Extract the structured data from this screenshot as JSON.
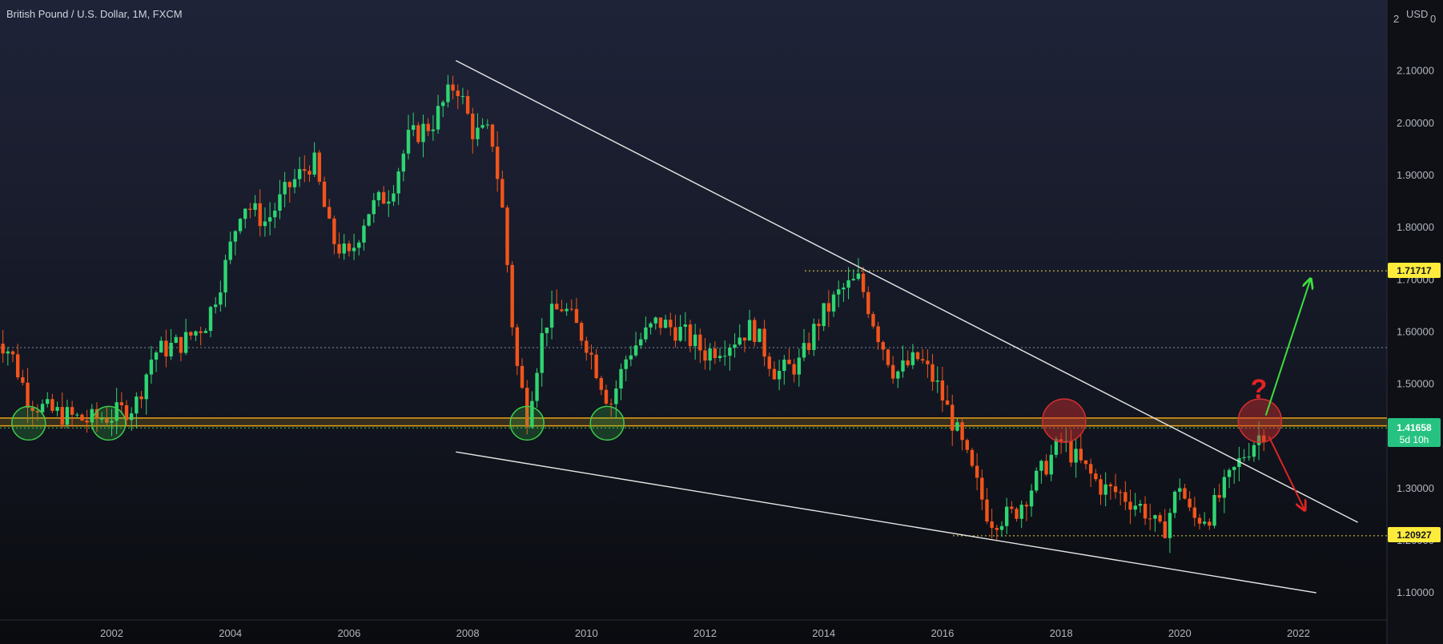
{
  "header": {
    "title": "British Pound / U.S. Dollar, 1M, FXCM"
  },
  "axis": {
    "currency": "USD",
    "currency_suffix": "0",
    "y_ticks": [
      "2.10000",
      "2.00000",
      "1.90000",
      "1.80000",
      "1.70000",
      "1.60000",
      "1.50000",
      "1.40000",
      "1.30000",
      "1.20000",
      "1.10000"
    ],
    "y_top_label": "2",
    "x_ticks": [
      "2002",
      "2004",
      "2006",
      "2008",
      "2010",
      "2012",
      "2014",
      "2016",
      "2018",
      "2020",
      "2022"
    ]
  },
  "price_tags": {
    "resistance_target": {
      "label": "1.71717",
      "value": 1.71717,
      "bg": "#ffeb3b"
    },
    "support_target": {
      "label": "1.20927",
      "value": 1.20927,
      "bg": "#ffeb3b"
    },
    "current": {
      "label": "1.41658",
      "countdown": "5d 10h",
      "value": 1.41658,
      "bg": "#26c281"
    }
  },
  "annotations": {
    "question_mark": "?"
  },
  "colors": {
    "up": "#2ed573",
    "down": "#f2541b",
    "zone": "#e8a317",
    "trendline": "#e6e6e6",
    "green_circle": "#3ccb4a",
    "red_circle": "#d32f2f",
    "arrow_up": "#3de03d",
    "arrow_down": "#e02424"
  },
  "chart_data": {
    "type": "candlestick",
    "symbol": "GBPUSD",
    "timeframe": "1M",
    "ylim": [
      1.05,
      2.2
    ],
    "x_range": [
      2000.0,
      2024.0
    ],
    "support_zone": [
      1.42,
      1.435
    ],
    "horizontal_levels": [
      1.71717,
      1.20927,
      1.57,
      1.416
    ],
    "trendlines": [
      {
        "name": "",
        "from": [
          2007.8,
          2.12
        ],
        "to": [
          2023.0,
          1.235
        ]
      },
      {
        "name": "",
        "from": [
          2007.8,
          1.37
        ],
        "to": [
          2022.3,
          1.1
        ]
      }
    ],
    "close_series": [
      {
        "x": 2000.0,
        "close": 1.6
      },
      {
        "x": 2000.3,
        "close": 1.56
      },
      {
        "x": 2000.6,
        "close": 1.47
      },
      {
        "x": 2000.9,
        "close": 1.45
      },
      {
        "x": 2001.2,
        "close": 1.44
      },
      {
        "x": 2001.6,
        "close": 1.43
      },
      {
        "x": 2002.0,
        "close": 1.44
      },
      {
        "x": 2002.4,
        "close": 1.46
      },
      {
        "x": 2002.7,
        "close": 1.56
      },
      {
        "x": 2003.2,
        "close": 1.58
      },
      {
        "x": 2003.6,
        "close": 1.62
      },
      {
        "x": 2003.9,
        "close": 1.72
      },
      {
        "x": 2004.2,
        "close": 1.85
      },
      {
        "x": 2004.6,
        "close": 1.81
      },
      {
        "x": 2005.0,
        "close": 1.88
      },
      {
        "x": 2005.4,
        "close": 1.93
      },
      {
        "x": 2005.7,
        "close": 1.78
      },
      {
        "x": 2006.0,
        "close": 1.74
      },
      {
        "x": 2006.3,
        "close": 1.83
      },
      {
        "x": 2006.7,
        "close": 1.87
      },
      {
        "x": 2007.0,
        "close": 1.97
      },
      {
        "x": 2007.4,
        "close": 2.0
      },
      {
        "x": 2007.8,
        "close": 2.08
      },
      {
        "x": 2008.1,
        "close": 1.98
      },
      {
        "x": 2008.4,
        "close": 1.98
      },
      {
        "x": 2008.6,
        "close": 1.82
      },
      {
        "x": 2008.8,
        "close": 1.55
      },
      {
        "x": 2009.0,
        "close": 1.44
      },
      {
        "x": 2009.3,
        "close": 1.62
      },
      {
        "x": 2009.6,
        "close": 1.65
      },
      {
        "x": 2010.0,
        "close": 1.58
      },
      {
        "x": 2010.4,
        "close": 1.46
      },
      {
        "x": 2010.7,
        "close": 1.56
      },
      {
        "x": 2011.2,
        "close": 1.62
      },
      {
        "x": 2011.6,
        "close": 1.6
      },
      {
        "x": 2012.0,
        "close": 1.56
      },
      {
        "x": 2012.4,
        "close": 1.58
      },
      {
        "x": 2012.8,
        "close": 1.61
      },
      {
        "x": 2013.2,
        "close": 1.52
      },
      {
        "x": 2013.6,
        "close": 1.54
      },
      {
        "x": 2013.9,
        "close": 1.62
      },
      {
        "x": 2014.3,
        "close": 1.68
      },
      {
        "x": 2014.6,
        "close": 1.7
      },
      {
        "x": 2014.9,
        "close": 1.6
      },
      {
        "x": 2015.2,
        "close": 1.52
      },
      {
        "x": 2015.6,
        "close": 1.55
      },
      {
        "x": 2015.9,
        "close": 1.5
      },
      {
        "x": 2016.2,
        "close": 1.42
      },
      {
        "x": 2016.5,
        "close": 1.33
      },
      {
        "x": 2016.8,
        "close": 1.24
      },
      {
        "x": 2017.2,
        "close": 1.25
      },
      {
        "x": 2017.6,
        "close": 1.32
      },
      {
        "x": 2018.0,
        "close": 1.39
      },
      {
        "x": 2018.3,
        "close": 1.35
      },
      {
        "x": 2018.7,
        "close": 1.3
      },
      {
        "x": 2019.0,
        "close": 1.29
      },
      {
        "x": 2019.4,
        "close": 1.26
      },
      {
        "x": 2019.7,
        "close": 1.21
      },
      {
        "x": 2020.0,
        "close": 1.31
      },
      {
        "x": 2020.2,
        "close": 1.24
      },
      {
        "x": 2020.5,
        "close": 1.25
      },
      {
        "x": 2020.8,
        "close": 1.31
      },
      {
        "x": 2021.1,
        "close": 1.37
      },
      {
        "x": 2021.4,
        "close": 1.41
      }
    ],
    "projections": [
      {
        "direction": "up",
        "from": [
          2021.45,
          1.44
        ],
        "to": [
          2022.2,
          1.7
        ]
      },
      {
        "direction": "down",
        "from": [
          2021.5,
          1.4
        ],
        "to": [
          2022.1,
          1.26
        ]
      }
    ],
    "circles": [
      {
        "color": "green",
        "x": 2000.6,
        "y": 1.425
      },
      {
        "color": "green",
        "x": 2001.95,
        "y": 1.425
      },
      {
        "color": "green",
        "x": 2009.0,
        "y": 1.425
      },
      {
        "color": "green",
        "x": 2010.35,
        "y": 1.425
      },
      {
        "color": "red",
        "x": 2018.05,
        "y": 1.43
      },
      {
        "color": "red",
        "x": 2021.35,
        "y": 1.43
      }
    ]
  }
}
